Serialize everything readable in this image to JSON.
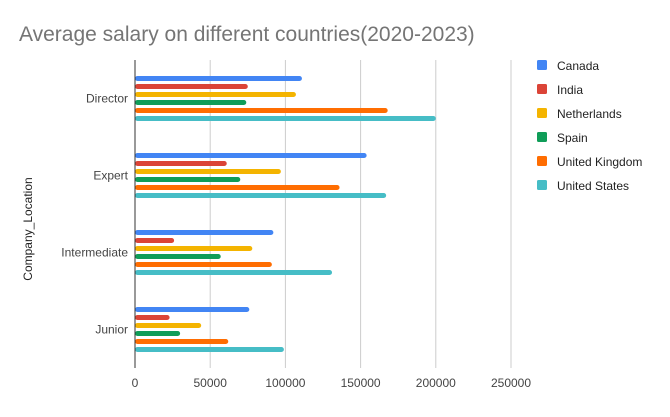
{
  "chart_data": {
    "type": "bar",
    "orientation": "horizontal",
    "title": "Average salary on different countries(2020-2023)",
    "ylabel": "Company_Location",
    "xlabel": "",
    "categories": [
      "Director",
      "Expert",
      "Intermediate",
      "Junior"
    ],
    "series": [
      {
        "name": "Canada",
        "color": "#4285F4",
        "values": [
          111000,
          154000,
          92000,
          76000
        ]
      },
      {
        "name": "India",
        "color": "#DB4437",
        "values": [
          75000,
          61000,
          26000,
          23000
        ]
      },
      {
        "name": "Netherlands",
        "color": "#F4B400",
        "values": [
          107000,
          97000,
          78000,
          44000
        ]
      },
      {
        "name": "Spain",
        "color": "#0F9D58",
        "values": [
          74000,
          70000,
          57000,
          30000
        ]
      },
      {
        "name": "United Kingdom",
        "color": "#FF6D01",
        "values": [
          168000,
          136000,
          91000,
          62000
        ]
      },
      {
        "name": "United States",
        "color": "#46BDC6",
        "values": [
          200000,
          167000,
          131000,
          99000
        ]
      }
    ],
    "xlim": [
      0,
      250000
    ],
    "xticks": [
      0,
      50000,
      100000,
      150000,
      200000,
      250000
    ],
    "xtick_labels": [
      "0",
      "50000",
      "100000",
      "150000",
      "200000",
      "250000"
    ],
    "grid": true,
    "legend_position": "right"
  }
}
